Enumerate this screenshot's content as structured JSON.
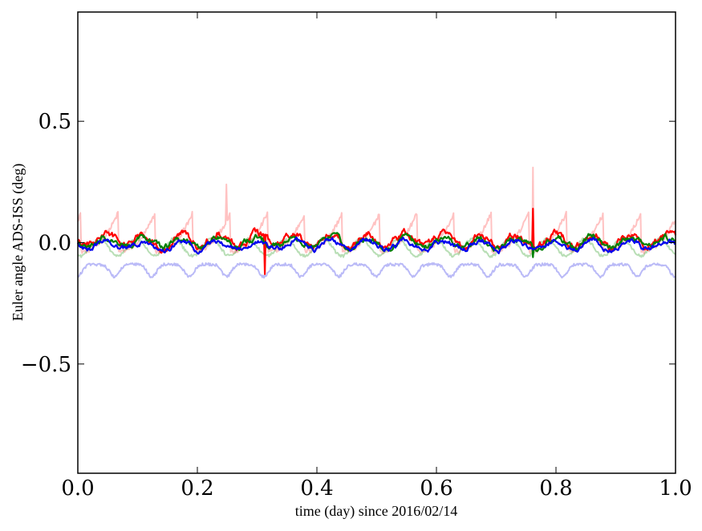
{
  "chart_data": {
    "type": "line",
    "title": "",
    "xlabel": "time (day) since 2016/02/14",
    "ylabel": "Euler angle ADS-ISS (deg)",
    "xlim": [
      0.0,
      1.0
    ],
    "ylim": [
      -0.95,
      0.95
    ],
    "xticks": [
      0.0,
      0.2,
      0.4,
      0.6,
      0.8,
      1.0
    ],
    "xtick_labels": [
      "0.0",
      "0.2",
      "0.4",
      "0.6",
      "0.8",
      "1.0"
    ],
    "yticks": [
      -0.5,
      0.0,
      0.5
    ],
    "ytick_labels": [
      "−0.5",
      "0.0",
      "0.5"
    ],
    "grid": false,
    "series": [
      {
        "name": "pink (faded red)",
        "color": "#ff9999",
        "opacity": 0.6,
        "baseline": 0.02,
        "amplitude": 0.16,
        "shape": "sawtooth",
        "period": 0.0625,
        "phase": 0.005,
        "spikes": [
          [
            0.248,
            0.24
          ],
          [
            0.762,
            0.31
          ]
        ]
      },
      {
        "name": "light green",
        "color": "#33a02c",
        "opacity": 0.35,
        "baseline": -0.02,
        "amplitude": 0.035,
        "shape": "sine",
        "period": 0.0625,
        "phase": 0.02,
        "spikes": []
      },
      {
        "name": "light blue",
        "color": "#6666ee",
        "opacity": 0.45,
        "baseline": -0.11,
        "amplitude": 0.05,
        "shape": "dip",
        "period": 0.0625,
        "phase": 0.03,
        "spikes": []
      },
      {
        "name": "red",
        "color": "#ff0000",
        "opacity": 1.0,
        "baseline": 0.01,
        "amplitude": 0.045,
        "shape": "noise",
        "period": 0.0625,
        "phase": 0.0,
        "spikes": [
          [
            0.313,
            -0.13
          ],
          [
            0.762,
            0.14
          ]
        ]
      },
      {
        "name": "green",
        "color": "#008000",
        "opacity": 1.0,
        "baseline": 0.0,
        "amplitude": 0.035,
        "shape": "noise",
        "period": 0.0625,
        "phase": 0.01,
        "spikes": [
          [
            0.762,
            -0.06
          ]
        ]
      },
      {
        "name": "blue",
        "color": "#0000ee",
        "opacity": 1.0,
        "baseline": -0.01,
        "amplitude": 0.03,
        "shape": "noise",
        "period": 0.0625,
        "phase": 0.02,
        "spikes": []
      }
    ]
  }
}
